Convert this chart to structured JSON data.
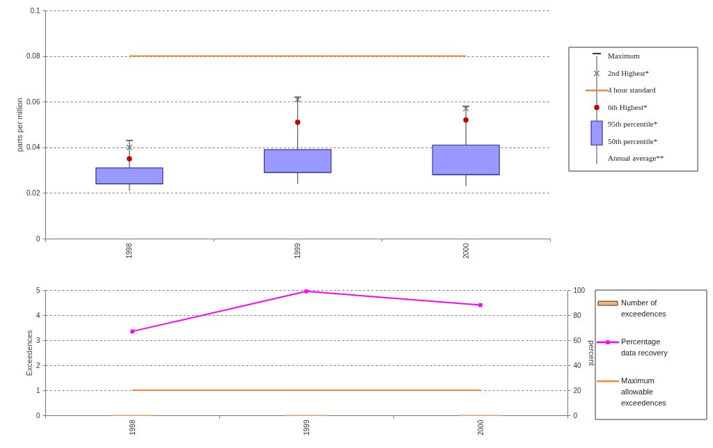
{
  "chart_data": [
    {
      "type": "box",
      "ylabel": "parts per million",
      "categories": [
        "1998",
        "1999",
        "2000"
      ],
      "ylim": [
        0,
        0.1
      ],
      "yticks": [
        0,
        0.02,
        0.04,
        0.06,
        0.08,
        0.1
      ],
      "grid": "y",
      "legend": "right",
      "annotations": [
        "Maximum",
        "95th percentile*",
        "50th percentile*",
        "Annual average**"
      ],
      "series": [
        {
          "color": "#9999ff",
          "boxes": [
            {
              "low": 0.021,
              "q1": 0.024,
              "median": 0.024,
              "q3": 0.031,
              "high": 0.043
            },
            {
              "low": 0.024,
              "q1": 0.029,
              "median": 0.029,
              "q3": 0.039,
              "high": 0.062
            },
            {
              "low": 0.023,
              "q1": 0.028,
              "median": 0.028,
              "q3": 0.041,
              "high": 0.058
            }
          ]
        },
        {
          "name": "2nd Highest*",
          "type": "scatter",
          "marker": "cross",
          "color": "#808080",
          "values": [
            0.04,
            0.061,
            0.057
          ]
        },
        {
          "name": "4 hour standard",
          "type": "line",
          "marker": "none",
          "color": "#f4883a",
          "values": [
            0.08,
            0.08,
            0.08
          ]
        },
        {
          "name": "6th Highest*",
          "type": "scatter",
          "marker": "circle",
          "color": "#c00000",
          "values": [
            0.035,
            0.051,
            0.052
          ]
        }
      ]
    },
    {
      "type": "bar",
      "ylabel": "Exceedences",
      "y2label": "percent",
      "categories": [
        "1998",
        "1999",
        "2000"
      ],
      "ylim": [
        0,
        5
      ],
      "yticks": [
        0,
        1,
        2,
        3,
        4,
        5
      ],
      "y2lim": [
        0,
        100
      ],
      "y2ticks": [
        0,
        20,
        40,
        60,
        80,
        100
      ],
      "grid": "y",
      "legend": "right",
      "series": [
        {
          "name": "Number of exceedences",
          "color": "#f5b57a",
          "values": [
            0,
            0,
            0
          ]
        },
        {
          "name": "Percentage data recovery",
          "type": "line",
          "marker": "square",
          "color": "#ff00ff",
          "axis": "y2",
          "values": [
            67,
            99,
            88
          ]
        },
        {
          "name": "Maximum allowable exceedences",
          "type": "line",
          "marker": "none",
          "color": "#f4883a",
          "values": [
            1,
            1,
            1
          ]
        }
      ]
    }
  ]
}
